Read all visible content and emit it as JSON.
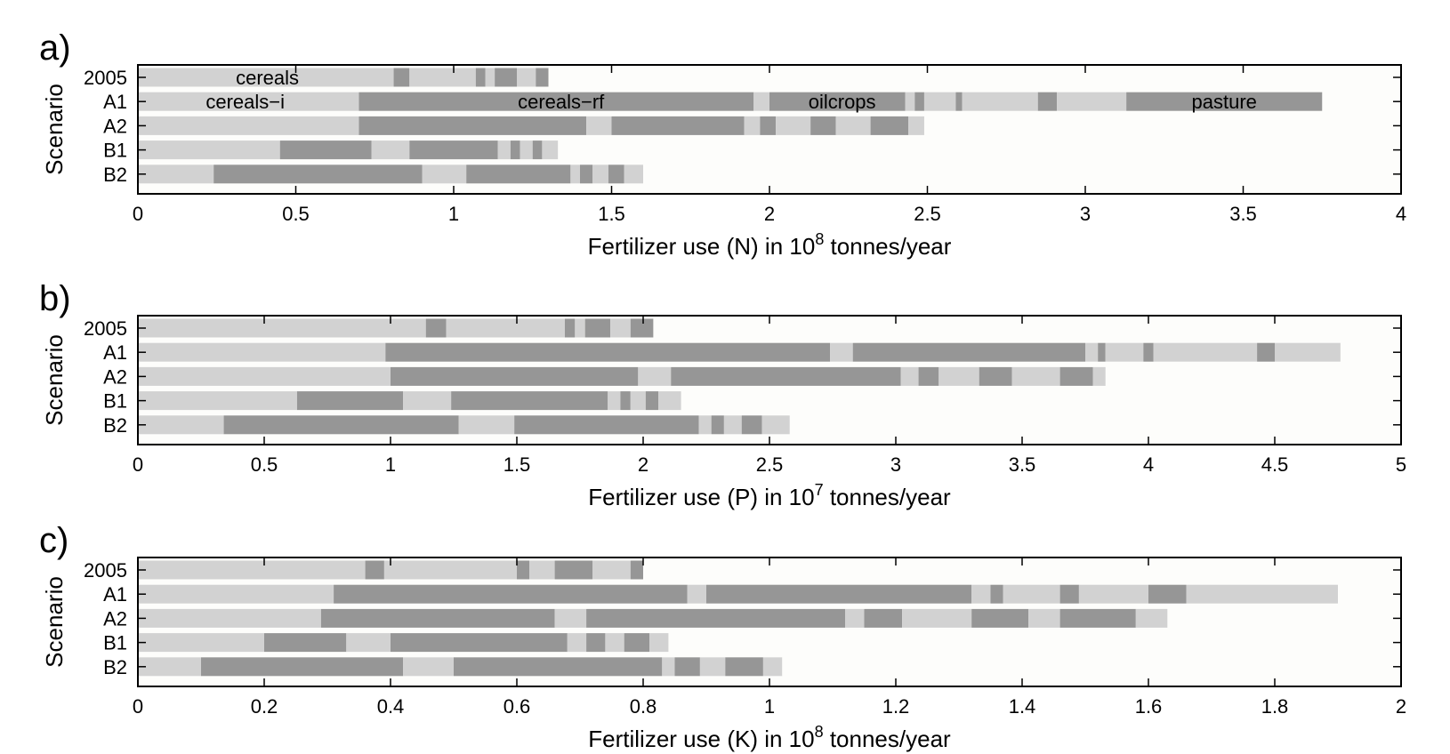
{
  "colors": {
    "dark": "#969696",
    "light": "#d2d2d2",
    "plot_bg": "#fdfdfb",
    "axis": "#000000"
  },
  "chart_data": [
    {
      "type": "bar",
      "panel_label": "a)",
      "ylabel": "Scenario",
      "xlabel": "Fertilizer use (N) in 10",
      "xlabel_sup": "8",
      "xlabel_after": " tonnes/year",
      "xlim": [
        0,
        4
      ],
      "xticks": [
        "0",
        "0.5",
        "1",
        "1.5",
        "2",
        "2.5",
        "3",
        "3.5",
        "4"
      ],
      "categories": [
        "2005",
        "A1",
        "A2",
        "B1",
        "B2"
      ],
      "stacked_boundaries": [
        [
          0,
          0.81,
          0.86,
          1.07,
          1.1,
          1.13,
          1.2,
          1.26,
          1.3
        ],
        [
          0,
          0.7,
          1.95,
          2.0,
          2.43,
          2.46,
          2.49,
          2.59,
          2.61,
          2.85,
          2.91,
          3.13,
          3.75
        ],
        [
          0,
          0.7,
          1.42,
          1.5,
          1.92,
          1.97,
          2.02,
          2.13,
          2.21,
          2.32,
          2.44,
          2.49
        ],
        [
          0,
          0.45,
          0.74,
          0.86,
          1.14,
          1.18,
          1.21,
          1.25,
          1.28,
          1.33
        ],
        [
          0,
          0.24,
          0.9,
          1.04,
          1.37,
          1.4,
          1.44,
          1.49,
          1.54,
          1.6
        ]
      ],
      "annotations": [
        {
          "text": "cereals",
          "bar": "2005",
          "x": 0.41
        },
        {
          "text": "cereals−i",
          "bar": "A1",
          "x": 0.34
        },
        {
          "text": "cereals−rf",
          "bar": "A1",
          "x": 1.34
        },
        {
          "text": "oilcrops",
          "bar": "A1",
          "x": 2.23
        },
        {
          "text": "pasture",
          "bar": "A1",
          "x": 3.44
        }
      ]
    },
    {
      "type": "bar",
      "panel_label": "b)",
      "ylabel": "Scenario",
      "xlabel": "Fertilizer use (P) in 10",
      "xlabel_sup": "7",
      "xlabel_after": " tonnes/year",
      "xlim": [
        0,
        5
      ],
      "xticks": [
        "0",
        "0.5",
        "1",
        "1.5",
        "2",
        "2.5",
        "3",
        "3.5",
        "4",
        "4.5",
        "5"
      ],
      "categories": [
        "2005",
        "A1",
        "A2",
        "B1",
        "B2"
      ],
      "stacked_boundaries": [
        [
          0,
          1.14,
          1.22,
          1.69,
          1.73,
          1.77,
          1.87,
          1.95,
          2.04
        ],
        [
          0,
          0.98,
          2.74,
          2.83,
          3.75,
          3.8,
          3.83,
          3.98,
          4.02,
          4.43,
          4.5,
          4.76
        ],
        [
          0,
          1.0,
          1.98,
          2.11,
          3.02,
          3.09,
          3.17,
          3.33,
          3.46,
          3.65,
          3.78,
          3.83
        ],
        [
          0,
          0.63,
          1.05,
          1.24,
          1.86,
          1.91,
          1.95,
          2.01,
          2.06,
          2.15
        ],
        [
          0,
          0.34,
          1.27,
          1.49,
          2.22,
          2.27,
          2.32,
          2.39,
          2.47,
          2.58
        ]
      ],
      "annotations": []
    },
    {
      "type": "bar",
      "panel_label": "c)",
      "ylabel": "Scenario",
      "xlabel": "Fertilizer use (K) in 10",
      "xlabel_sup": "8",
      "xlabel_after": " tonnes/year",
      "xlim": [
        0,
        2
      ],
      "xticks": [
        "0",
        "0.2",
        "0.4",
        "0.6",
        "0.8",
        "1",
        "1.2",
        "1.4",
        "1.6",
        "1.8",
        "2"
      ],
      "categories": [
        "2005",
        "A1",
        "A2",
        "B1",
        "B2"
      ],
      "stacked_boundaries": [
        [
          0,
          0.36,
          0.39,
          0.6,
          0.62,
          0.66,
          0.72,
          0.78,
          0.8
        ],
        [
          0,
          0.31,
          0.87,
          0.9,
          1.32,
          1.35,
          1.37,
          1.46,
          1.49,
          1.6,
          1.66,
          1.9
        ],
        [
          0,
          0.29,
          0.66,
          0.71,
          1.12,
          1.15,
          1.21,
          1.32,
          1.41,
          1.46,
          1.58,
          1.63
        ],
        [
          0,
          0.2,
          0.33,
          0.4,
          0.68,
          0.71,
          0.74,
          0.77,
          0.81,
          0.84
        ],
        [
          0,
          0.1,
          0.42,
          0.5,
          0.83,
          0.85,
          0.89,
          0.93,
          0.99,
          1.02
        ]
      ],
      "annotations": []
    }
  ]
}
